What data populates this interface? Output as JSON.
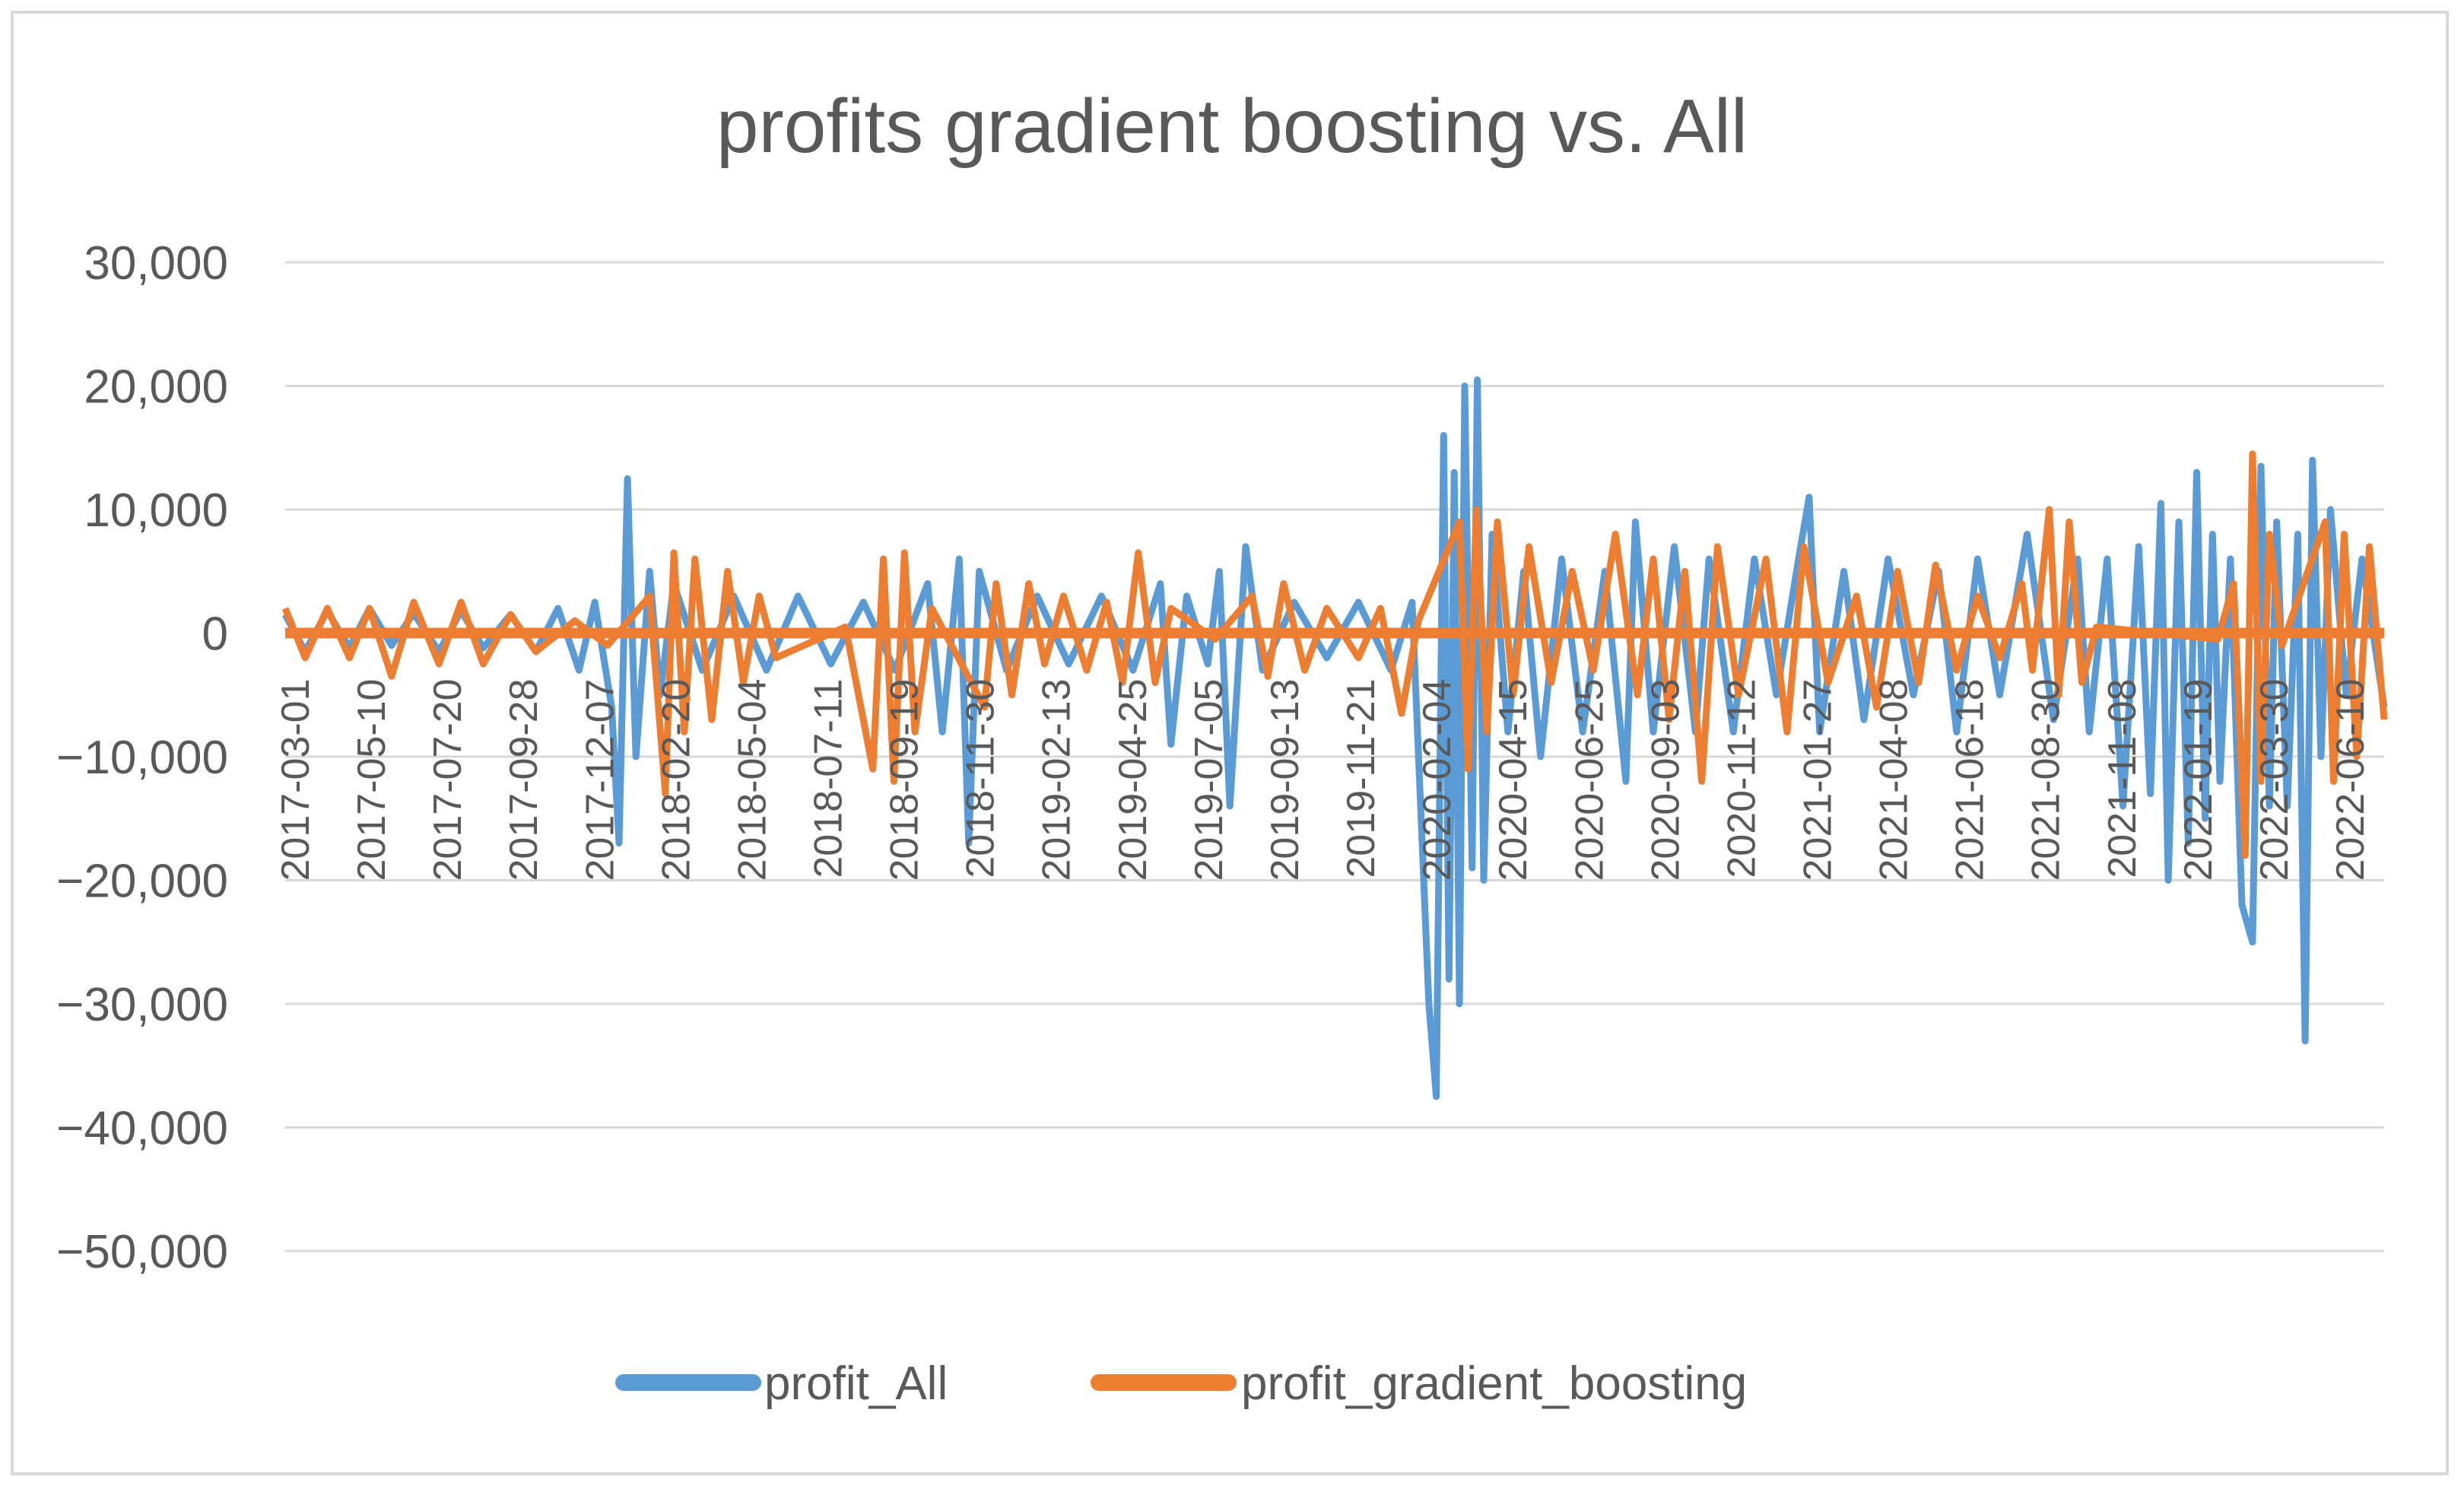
{
  "chart_data": {
    "type": "line",
    "title": "profits gradient boosting vs. All",
    "xlabel": "",
    "ylabel": "",
    "ylim": [
      -50000,
      30000
    ],
    "yticks": [
      "30,000",
      "20,000",
      "10,000",
      "0",
      "−10,000",
      "−20,000",
      "−30,000",
      "−40,000",
      "−50,000"
    ],
    "grid": true,
    "legend_position": "bottom",
    "x_tick_labels": [
      "2017-03-01",
      "2017-05-10",
      "2017-07-20",
      "2017-09-28",
      "2017-12-07",
      "2018-02-20",
      "2018-05-04",
      "2018-07-11",
      "2018-09-19",
      "2018-11-30",
      "2019-02-13",
      "2019-04-25",
      "2019-07-05",
      "2019-09-13",
      "2019-11-21",
      "2020-02-04",
      "2020-04-15",
      "2020-06-25",
      "2020-09-03",
      "2020-11-12",
      "2021-01-27",
      "2021-04-08",
      "2021-06-18",
      "2021-08-30",
      "2021-11-08",
      "2022-01-19",
      "2022-03-30",
      "2022-06-10"
    ],
    "x_start": "2017-03-01",
    "x_end": "2022-08-15",
    "series": [
      {
        "name": "profit_All",
        "color": "#5b9bd5",
        "points": [
          [
            "2017-03-01",
            1500
          ],
          [
            "2017-03-20",
            -1500
          ],
          [
            "2017-04-10",
            1800
          ],
          [
            "2017-05-01",
            -1200
          ],
          [
            "2017-05-20",
            2000
          ],
          [
            "2017-06-10",
            -1000
          ],
          [
            "2017-07-01",
            1600
          ],
          [
            "2017-07-25",
            -1500
          ],
          [
            "2017-08-15",
            1800
          ],
          [
            "2017-09-05",
            -1200
          ],
          [
            "2017-10-01",
            1500
          ],
          [
            "2017-10-25",
            -1500
          ],
          [
            "2017-11-15",
            2000
          ],
          [
            "2017-12-05",
            -3000
          ],
          [
            "2017-12-20",
            2500
          ],
          [
            "2018-01-05",
            -6000
          ],
          [
            "2018-01-12",
            -17000
          ],
          [
            "2018-01-20",
            12500
          ],
          [
            "2018-01-28",
            -10000
          ],
          [
            "2018-02-10",
            5000
          ],
          [
            "2018-02-20",
            -5000
          ],
          [
            "2018-03-05",
            4000
          ],
          [
            "2018-04-01",
            -3000
          ],
          [
            "2018-05-01",
            3000
          ],
          [
            "2018-06-01",
            -3000
          ],
          [
            "2018-07-01",
            3000
          ],
          [
            "2018-08-01",
            -2500
          ],
          [
            "2018-09-01",
            2500
          ],
          [
            "2018-10-01",
            -3000
          ],
          [
            "2018-11-01",
            4000
          ],
          [
            "2018-11-15",
            -8000
          ],
          [
            "2018-12-01",
            6000
          ],
          [
            "2018-12-10",
            -17000
          ],
          [
            "2018-12-20",
            5000
          ],
          [
            "2019-01-15",
            -3000
          ],
          [
            "2019-02-13",
            3000
          ],
          [
            "2019-03-15",
            -2500
          ],
          [
            "2019-04-15",
            3000
          ],
          [
            "2019-05-15",
            -3000
          ],
          [
            "2019-06-10",
            4000
          ],
          [
            "2019-06-20",
            -9000
          ],
          [
            "2019-07-05",
            3000
          ],
          [
            "2019-07-25",
            -2500
          ],
          [
            "2019-08-05",
            5000
          ],
          [
            "2019-08-15",
            -14000
          ],
          [
            "2019-08-30",
            7000
          ],
          [
            "2019-09-15",
            -3000
          ],
          [
            "2019-10-15",
            2500
          ],
          [
            "2019-11-15",
            -2000
          ],
          [
            "2019-12-15",
            2500
          ],
          [
            "2020-01-15",
            -3000
          ],
          [
            "2020-02-04",
            2500
          ],
          [
            "2020-02-20",
            -30000
          ],
          [
            "2020-02-27",
            -37500
          ],
          [
            "2020-03-05",
            16000
          ],
          [
            "2020-03-10",
            -28000
          ],
          [
            "2020-03-15",
            13000
          ],
          [
            "2020-03-20",
            -30000
          ],
          [
            "2020-03-25",
            20000
          ],
          [
            "2020-04-01",
            -19000
          ],
          [
            "2020-04-06",
            20500
          ],
          [
            "2020-04-12",
            -20000
          ],
          [
            "2020-04-20",
            8000
          ],
          [
            "2020-05-05",
            -8000
          ],
          [
            "2020-05-20",
            5000
          ],
          [
            "2020-06-05",
            -10000
          ],
          [
            "2020-06-25",
            6000
          ],
          [
            "2020-07-15",
            -8000
          ],
          [
            "2020-08-05",
            5000
          ],
          [
            "2020-08-25",
            -12000
          ],
          [
            "2020-09-03",
            9000
          ],
          [
            "2020-09-20",
            -8000
          ],
          [
            "2020-10-10",
            7000
          ],
          [
            "2020-10-30",
            -8000
          ],
          [
            "2020-11-12",
            6000
          ],
          [
            "2020-12-05",
            -8000
          ],
          [
            "2020-12-25",
            6000
          ],
          [
            "2021-01-15",
            -5000
          ],
          [
            "2021-02-05",
            6000
          ],
          [
            "2021-02-15",
            11000
          ],
          [
            "2021-02-25",
            -8000
          ],
          [
            "2021-03-20",
            5000
          ],
          [
            "2021-04-08",
            -7000
          ],
          [
            "2021-05-01",
            6000
          ],
          [
            "2021-05-25",
            -5000
          ],
          [
            "2021-06-18",
            5000
          ],
          [
            "2021-07-05",
            -8000
          ],
          [
            "2021-07-25",
            6000
          ],
          [
            "2021-08-15",
            -5000
          ],
          [
            "2021-09-10",
            8000
          ],
          [
            "2021-10-05",
            -7000
          ],
          [
            "2021-10-28",
            6000
          ],
          [
            "2021-11-08",
            -8000
          ],
          [
            "2021-11-25",
            6000
          ],
          [
            "2021-12-10",
            -14000
          ],
          [
            "2021-12-25",
            7000
          ],
          [
            "2022-01-05",
            -13000
          ],
          [
            "2022-01-15",
            10500
          ],
          [
            "2022-01-22",
            -20000
          ],
          [
            "2022-02-01",
            9000
          ],
          [
            "2022-02-10",
            -17000
          ],
          [
            "2022-02-18",
            13000
          ],
          [
            "2022-02-26",
            -15000
          ],
          [
            "2022-03-05",
            8000
          ],
          [
            "2022-03-12",
            -12000
          ],
          [
            "2022-03-22",
            6000
          ],
          [
            "2022-04-02",
            -22000
          ],
          [
            "2022-04-12",
            -25000
          ],
          [
            "2022-04-20",
            13500
          ],
          [
            "2022-04-28",
            -14000
          ],
          [
            "2022-05-05",
            9000
          ],
          [
            "2022-05-15",
            -14000
          ],
          [
            "2022-05-25",
            8000
          ],
          [
            "2022-06-01",
            -33000
          ],
          [
            "2022-06-08",
            14000
          ],
          [
            "2022-06-16",
            -10000
          ],
          [
            "2022-06-25",
            10000
          ],
          [
            "2022-07-10",
            -5000
          ],
          [
            "2022-07-25",
            6000
          ],
          [
            "2022-08-15",
            -6000
          ]
        ]
      },
      {
        "name": "profit_gradient_boosting",
        "color": "#ed7d31",
        "points": [
          [
            "2017-03-01",
            2000
          ],
          [
            "2017-03-20",
            -2000
          ],
          [
            "2017-04-10",
            2000
          ],
          [
            "2017-05-01",
            -2000
          ],
          [
            "2017-05-20",
            2000
          ],
          [
            "2017-06-10",
            -3500
          ],
          [
            "2017-07-01",
            2500
          ],
          [
            "2017-07-25",
            -2500
          ],
          [
            "2017-08-15",
            2500
          ],
          [
            "2017-09-05",
            -2500
          ],
          [
            "2017-10-01",
            1500
          ],
          [
            "2017-10-25",
            -1500
          ],
          [
            "2017-12-01",
            1000
          ],
          [
            "2018-01-01",
            -1000
          ],
          [
            "2018-02-10",
            3000
          ],
          [
            "2018-02-25",
            -13000
          ],
          [
            "2018-03-05",
            6500
          ],
          [
            "2018-03-15",
            -8000
          ],
          [
            "2018-03-25",
            6000
          ],
          [
            "2018-04-10",
            -7000
          ],
          [
            "2018-04-25",
            5000
          ],
          [
            "2018-05-10",
            -4000
          ],
          [
            "2018-05-25",
            3000
          ],
          [
            "2018-06-10",
            -2000
          ],
          [
            "2018-08-15",
            500
          ],
          [
            "2018-09-10",
            -11000
          ],
          [
            "2018-09-20",
            6000
          ],
          [
            "2018-09-30",
            -12000
          ],
          [
            "2018-10-10",
            6500
          ],
          [
            "2018-10-20",
            -8000
          ],
          [
            "2018-11-05",
            2000
          ],
          [
            "2018-12-25",
            -6000
          ],
          [
            "2019-01-05",
            4000
          ],
          [
            "2019-01-20",
            -5000
          ],
          [
            "2019-02-05",
            4000
          ],
          [
            "2019-02-20",
            -2500
          ],
          [
            "2019-03-10",
            3000
          ],
          [
            "2019-04-01",
            -3000
          ],
          [
            "2019-04-20",
            2500
          ],
          [
            "2019-05-05",
            -4000
          ],
          [
            "2019-05-20",
            6500
          ],
          [
            "2019-06-05",
            -4000
          ],
          [
            "2019-06-20",
            2000
          ],
          [
            "2019-08-01",
            -500
          ],
          [
            "2019-09-05",
            3000
          ],
          [
            "2019-09-20",
            -3500
          ],
          [
            "2019-10-05",
            4000
          ],
          [
            "2019-10-25",
            -3000
          ],
          [
            "2019-11-15",
            2000
          ],
          [
            "2019-12-15",
            -2000
          ],
          [
            "2020-01-05",
            2000
          ],
          [
            "2020-01-25",
            -6500
          ],
          [
            "2020-02-10",
            1000
          ],
          [
            "2020-03-20",
            9000
          ],
          [
            "2020-03-28",
            -11000
          ],
          [
            "2020-04-05",
            10000
          ],
          [
            "2020-04-15",
            -8000
          ],
          [
            "2020-04-25",
            9000
          ],
          [
            "2020-05-10",
            -5000
          ],
          [
            "2020-05-25",
            7000
          ],
          [
            "2020-06-15",
            -4000
          ],
          [
            "2020-07-05",
            5000
          ],
          [
            "2020-07-25",
            -3000
          ],
          [
            "2020-08-15",
            8000
          ],
          [
            "2020-09-05",
            -5000
          ],
          [
            "2020-09-20",
            6000
          ],
          [
            "2020-10-05",
            -7000
          ],
          [
            "2020-10-20",
            5000
          ],
          [
            "2020-11-05",
            -12000
          ],
          [
            "2020-11-20",
            7000
          ],
          [
            "2020-12-10",
            -5000
          ],
          [
            "2021-01-05",
            6000
          ],
          [
            "2021-01-25",
            -8000
          ],
          [
            "2021-02-10",
            7000
          ],
          [
            "2021-03-05",
            -4000
          ],
          [
            "2021-04-01",
            3000
          ],
          [
            "2021-04-20",
            -6000
          ],
          [
            "2021-05-10",
            5000
          ],
          [
            "2021-05-30",
            -4000
          ],
          [
            "2021-06-15",
            5500
          ],
          [
            "2021-07-05",
            -3000
          ],
          [
            "2021-07-25",
            3000
          ],
          [
            "2021-08-15",
            -2000
          ],
          [
            "2021-09-05",
            4000
          ],
          [
            "2021-09-15",
            -3000
          ],
          [
            "2021-10-01",
            10000
          ],
          [
            "2021-10-10",
            -5000
          ],
          [
            "2021-10-20",
            9000
          ],
          [
            "2021-11-01",
            -4000
          ],
          [
            "2021-11-15",
            500
          ],
          [
            "2022-03-10",
            -500
          ],
          [
            "2022-03-25",
            4000
          ],
          [
            "2022-04-05",
            -18000
          ],
          [
            "2022-04-12",
            14500
          ],
          [
            "2022-04-20",
            -12000
          ],
          [
            "2022-04-28",
            8000
          ],
          [
            "2022-05-10",
            -1000
          ],
          [
            "2022-06-20",
            9000
          ],
          [
            "2022-06-28",
            -12000
          ],
          [
            "2022-07-08",
            8000
          ],
          [
            "2022-07-20",
            -10000
          ],
          [
            "2022-08-01",
            7000
          ],
          [
            "2022-08-15",
            -7000
          ]
        ]
      }
    ]
  }
}
